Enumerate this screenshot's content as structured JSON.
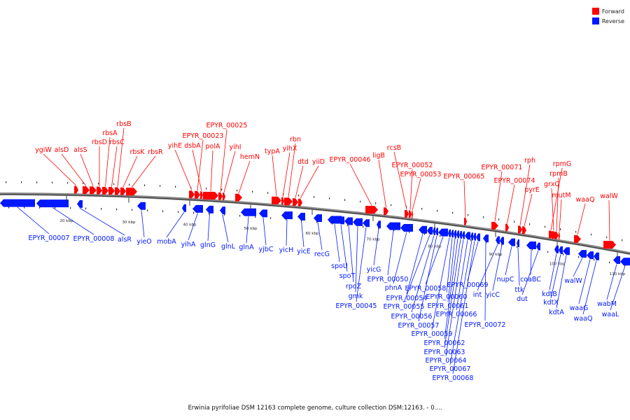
{
  "legend": {
    "forward_label": "Forward",
    "reverse_label": "Reverse",
    "forward_color": "#ff0000",
    "reverse_color": "#0018ff"
  },
  "caption": "Erwinia pyrifoliae DSM 12163 complete genome, culture collection DSM:12163. - 0....",
  "ticks": [
    "20 kbp",
    "30 kbp",
    "40 kbp",
    "50 kbp",
    "60 kbp",
    "70 kbp",
    "80 kbp",
    "90 kbp",
    "100 kbp",
    "110 kbp"
  ],
  "forward_genes": [
    "ygiW",
    "alsD",
    "alsS",
    "rbsD",
    "rbsA",
    "rbsC",
    "rbsB",
    "rbsK",
    "rbsR",
    "yihE",
    "EPYR_00023",
    "dsbA",
    "polA",
    "EPYR_00025",
    "yihI",
    "hemN",
    "typA",
    "yihX",
    "rbn",
    "dtd",
    "yiiD",
    "EPYR_00046",
    "ligB",
    "rcsB",
    "EPYR_00052",
    "EPYR_00053",
    "EPYR_00065",
    "EPYR_00071",
    "EPYR_00074",
    "rph",
    "pyrE",
    "rpmG",
    "grxC",
    "rpmB",
    "mutM",
    "waaQ",
    "walW"
  ],
  "reverse_genes": [
    "EPYR_00007",
    "EPYR_00008",
    "alsR",
    "yieO",
    "mobA",
    "yihA",
    "glnG",
    "glnL",
    "glnA",
    "yjbC",
    "yicH",
    "yicE",
    "recG",
    "spoU",
    "spoT",
    "rpoZ",
    "gmk",
    "EPYR_00045",
    "yicG",
    "EPYR_00050",
    "phnA",
    "EPYR_00054",
    "EPYR_00055",
    "EPYR_00056",
    "EPYR_00057",
    "EPYR_00058",
    "EPYR_00059",
    "EPYR_00060",
    "EPYR_00061",
    "EPYR_00062",
    "EPYR_00063",
    "EPYR_00064",
    "EPYR_00066",
    "EPYR_00067",
    "EPYR_00068",
    "EPYR_00069",
    "EPYR_00072",
    "int",
    "yicC",
    "nupC",
    "ttk",
    "coaBC",
    "dut",
    "kdtB",
    "kdtX",
    "kdtA",
    "walW",
    "waaG",
    "waaQ",
    "wabM",
    "waaL"
  ]
}
